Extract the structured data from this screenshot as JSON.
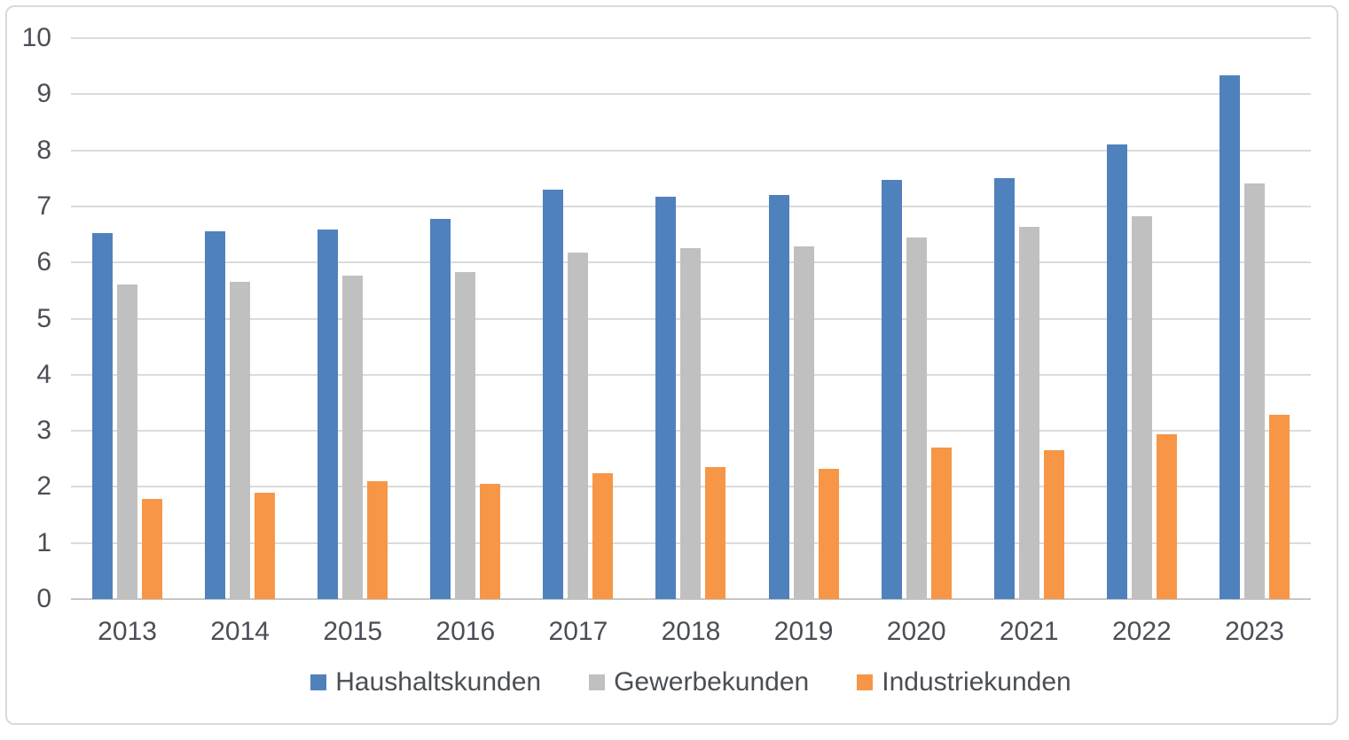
{
  "chart_data": {
    "type": "bar",
    "title": "",
    "categories": [
      "2013",
      "2014",
      "2015",
      "2016",
      "2017",
      "2018",
      "2019",
      "2020",
      "2021",
      "2022",
      "2023"
    ],
    "series": [
      {
        "name": "Haushaltskunden",
        "color": "#4F81BD",
        "values": [
          6.52,
          6.55,
          6.59,
          6.78,
          7.3,
          7.17,
          7.21,
          7.48,
          7.51,
          8.1,
          9.33
        ]
      },
      {
        "name": "Gewerbekunden",
        "color": "#C0C0C0",
        "values": [
          5.61,
          5.65,
          5.77,
          5.83,
          6.17,
          6.26,
          6.29,
          6.45,
          6.63,
          6.83,
          7.41
        ]
      },
      {
        "name": "Industriekunden",
        "color": "#F79646",
        "values": [
          1.78,
          1.89,
          2.1,
          2.05,
          2.25,
          2.36,
          2.33,
          2.7,
          2.66,
          2.94,
          3.28
        ]
      }
    ],
    "xlabel": "",
    "ylabel": "",
    "ylim": [
      0,
      10
    ],
    "yticks": [
      "0",
      "1",
      "2",
      "3",
      "4",
      "5",
      "6",
      "7",
      "8",
      "9",
      "10"
    ],
    "grid": true,
    "legend_position": "bottom"
  },
  "colors": {
    "gridline": "#DBDBDB",
    "baseline": "#C6C6C6",
    "text": "#4B4E57",
    "frame_border": "#D9D9D9",
    "background": "#FFFFFF"
  }
}
